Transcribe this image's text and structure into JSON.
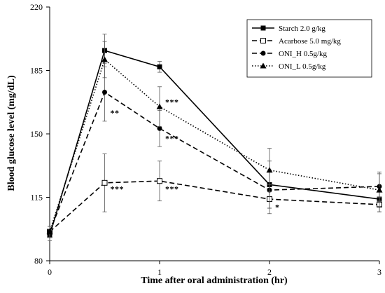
{
  "chart_data": {
    "type": "line",
    "title": "",
    "xlabel": "Time after oral administration (hr)",
    "ylabel": "Blood glucose level (mg/dL)",
    "x": [
      0,
      0.5,
      1,
      2,
      3
    ],
    "xticks": [
      "0",
      "1",
      "2",
      "3"
    ],
    "xlim": [
      0,
      3
    ],
    "ylim": [
      80,
      220
    ],
    "yticks": [
      "80",
      "115",
      "150",
      "185",
      "220"
    ],
    "grid": false,
    "legend_position": "top-right",
    "series": [
      {
        "name": "Starch 2.0 g/kg",
        "values": [
          94,
          196,
          187,
          122,
          114
        ],
        "errors": [
          3,
          9,
          3,
          13,
          7
        ],
        "line": "solid",
        "marker": "square-filled",
        "color": "#000000"
      },
      {
        "name": "Acarbose 5.0 mg/kg",
        "values": [
          96,
          123,
          124,
          114,
          111
        ],
        "errors": [
          3,
          16,
          11,
          8,
          4
        ],
        "line": "dashed",
        "marker": "square-open",
        "color": "#000000"
      },
      {
        "name": "ONI_H 0.5g/kg",
        "values": [
          96,
          173,
          153,
          119,
          121
        ],
        "errors": [
          3,
          16,
          10,
          10,
          8
        ],
        "line": "dashed",
        "marker": "circle-filled",
        "color": "#000000"
      },
      {
        "name": "ONI_L 0.5g/kg",
        "values": [
          96,
          191,
          165,
          130,
          119
        ],
        "errors": [
          3,
          10,
          11,
          12,
          9
        ],
        "line": "dotted",
        "marker": "triangle-filled",
        "color": "#000000"
      }
    ],
    "annotations": [
      {
        "text": "**",
        "x": 0.5,
        "y": 160
      },
      {
        "text": "***",
        "x": 1,
        "y": 166
      },
      {
        "text": "***",
        "x": 1,
        "y": 146
      },
      {
        "text": "***",
        "x": 0.5,
        "y": 118
      },
      {
        "text": "***",
        "x": 1,
        "y": 118
      },
      {
        "text": "*",
        "x": 2,
        "y": 108
      }
    ]
  }
}
